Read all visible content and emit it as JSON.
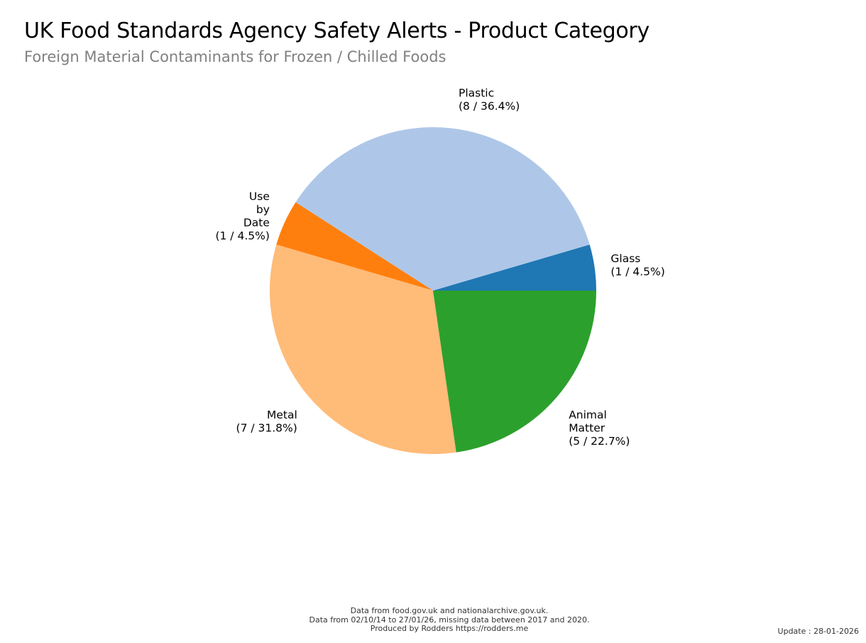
{
  "chart_data": {
    "type": "pie",
    "title": "UK Food Standards Agency Safety Alerts - Product Category",
    "subtitle": "Foreign Material Contaminants for Frozen / Chilled Foods",
    "slices": [
      {
        "label": "Glass",
        "label_lines": [
          "Glass"
        ],
        "value": 1,
        "percent": "4.5%",
        "value_label": "(1 / 4.5%)",
        "color": "#1f77b4"
      },
      {
        "label": "Plastic",
        "label_lines": [
          "Plastic"
        ],
        "value": 8,
        "percent": "36.4%",
        "value_label": "(8 / 36.4%)",
        "color": "#aec7e8"
      },
      {
        "label": "Use by Date",
        "label_lines": [
          "Use",
          "by",
          "Date"
        ],
        "value": 1,
        "percent": "4.5%",
        "value_label": "(1 / 4.5%)",
        "color": "#ff7f0e"
      },
      {
        "label": "Metal",
        "label_lines": [
          "Metal"
        ],
        "value": 7,
        "percent": "31.8%",
        "value_label": "(7 / 31.8%)",
        "color": "#ffbb78"
      },
      {
        "label": "Animal Matter",
        "label_lines": [
          "Animal",
          "Matter"
        ],
        "value": 5,
        "percent": "22.7%",
        "value_label": "(5 / 22.7%)",
        "color": "#2ca02c"
      }
    ]
  },
  "footer": {
    "lines": [
      "Data from food.gov.uk and nationalarchive.gov.uk.",
      "Data from 02/10/14 to 27/01/26, missing data between 2017 and 2020.",
      "Produced by Rodders https://rodders.me"
    ],
    "update": "Update : 28-01-2026"
  }
}
